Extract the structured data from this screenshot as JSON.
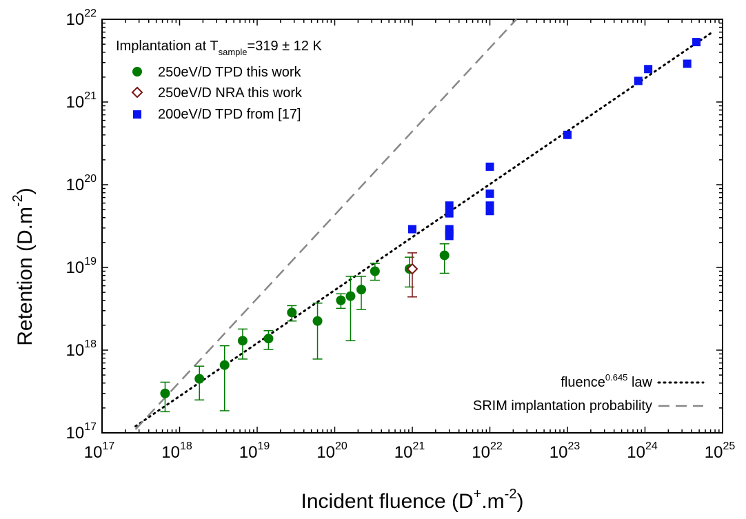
{
  "chart_data": {
    "type": "scatter",
    "x_scale": "log",
    "y_scale": "log",
    "xlabel": {
      "main": "Incident fluence (D",
      "sup": "+",
      "tail": ".m",
      "sup2": "-2",
      "close": ")"
    },
    "ylabel": {
      "main": "Retention (D.m",
      "sup": "-2",
      "close": ")"
    },
    "xlim": [
      1e+17,
      1e+25
    ],
    "ylim": [
      1e+17,
      1e+22
    ],
    "x_ticks": [
      {
        "base": "10",
        "exp": "17"
      },
      {
        "base": "10",
        "exp": "18"
      },
      {
        "base": "10",
        "exp": "19"
      },
      {
        "base": "10",
        "exp": "20"
      },
      {
        "base": "10",
        "exp": "21"
      },
      {
        "base": "10",
        "exp": "22"
      },
      {
        "base": "10",
        "exp": "23"
      },
      {
        "base": "10",
        "exp": "24"
      },
      {
        "base": "10",
        "exp": "25"
      }
    ],
    "y_ticks": [
      {
        "base": "10",
        "exp": "17"
      },
      {
        "base": "10",
        "exp": "18"
      },
      {
        "base": "10",
        "exp": "19"
      },
      {
        "base": "10",
        "exp": "20"
      },
      {
        "base": "10",
        "exp": "21"
      },
      {
        "base": "10",
        "exp": "22"
      }
    ],
    "grid": false,
    "annotation": {
      "prefix": "Implantation at T",
      "sub": "sample",
      "suffix": "=319 ± 12 K"
    },
    "series": [
      {
        "name": "250eV/D TPD this work",
        "marker": "circle",
        "color": "#007a00",
        "points": [
          {
            "x": 6.5e+17,
            "y": 3e+17,
            "ylo": 1.8e+17,
            "yhi": 4.1e+17
          },
          {
            "x": 1.8e+18,
            "y": 4.5e+17,
            "ylo": 2.5e+17,
            "yhi": 6.4e+17
          },
          {
            "x": 3.8e+18,
            "y": 6.6e+17,
            "ylo": 1.85e+17,
            "yhi": 1.13e+18
          },
          {
            "x": 6.5e+18,
            "y": 1.3e+18,
            "ylo": 7.8e+17,
            "yhi": 1.8e+18
          },
          {
            "x": 1.4e+19,
            "y": 1.38e+18,
            "ylo": 1.02e+18,
            "yhi": 1.72e+18
          },
          {
            "x": 2.8e+19,
            "y": 2.85e+18,
            "ylo": 2.25e+18,
            "yhi": 3.45e+18
          },
          {
            "x": 6e+19,
            "y": 2.25e+18,
            "ylo": 7.8e+17,
            "yhi": 3.7e+18
          },
          {
            "x": 1.2e+20,
            "y": 4e+18,
            "ylo": 3.2e+18,
            "yhi": 4.8e+18
          },
          {
            "x": 1.6e+20,
            "y": 4.5e+18,
            "ylo": 1.3e+18,
            "yhi": 7.8e+18
          },
          {
            "x": 2.2e+20,
            "y": 5.4e+18,
            "ylo": 3.1e+18,
            "yhi": 7.8e+18
          },
          {
            "x": 3.3e+20,
            "y": 9e+18,
            "ylo": 7e+18,
            "yhi": 1.12e+19
          },
          {
            "x": 9.2e+20,
            "y": 9.6e+18,
            "ylo": 5.8e+18,
            "yhi": 1.33e+19
          },
          {
            "x": 2.6e+21,
            "y": 1.4e+19,
            "ylo": 8.5e+18,
            "yhi": 1.93e+19
          }
        ]
      },
      {
        "name": "250eV/D NRA this work",
        "marker": "diamond-open",
        "color": "#7a1414",
        "points": [
          {
            "x": 1e+21,
            "y": 9.6e+18,
            "ylo": 4.4e+18,
            "yhi": 1.5e+19
          }
        ]
      },
      {
        "name": "200eV/D TPD from [17]",
        "marker": "square",
        "color": "#0a14f0",
        "points": [
          {
            "x": 1e+21,
            "y": 2.9e+19
          },
          {
            "x": 3e+21,
            "y": 5.6e+19
          },
          {
            "x": 3e+21,
            "y": 4.5e+19
          },
          {
            "x": 3e+21,
            "y": 2.9e+19
          },
          {
            "x": 3e+21,
            "y": 2.6e+19
          },
          {
            "x": 3e+21,
            "y": 2.4e+19
          },
          {
            "x": 1e+22,
            "y": 1.65e+20
          },
          {
            "x": 1e+22,
            "y": 7.8e+19
          },
          {
            "x": 1e+22,
            "y": 5.6e+19
          },
          {
            "x": 1e+22,
            "y": 4.8e+19
          },
          {
            "x": 1e+23,
            "y": 4e+20
          },
          {
            "x": 8.2e+23,
            "y": 1.8e+21
          },
          {
            "x": 1.1e+24,
            "y": 2.5e+21
          },
          {
            "x": 3.5e+24,
            "y": 2.9e+21
          },
          {
            "x": 4.6e+24,
            "y": 5.3e+21
          }
        ]
      }
    ],
    "lines": [
      {
        "name": "fluence^0.645 law",
        "label_main": "fluence",
        "label_sup": "0.645",
        "label_tail": " law",
        "style": "dotted",
        "color": "#000000",
        "x": [
          2.7e+17,
          7e+24
        ],
        "y": [
          1.2e+17,
          6.75e+21
        ]
      },
      {
        "name": "SRIM implantation probability",
        "label_main": "SRIM implantation probability",
        "style": "dashed",
        "color": "#888888",
        "x": [
          2.7e+17,
          2.2e+22
        ],
        "y": [
          1.1e+17,
          1e+22
        ]
      }
    ]
  }
}
